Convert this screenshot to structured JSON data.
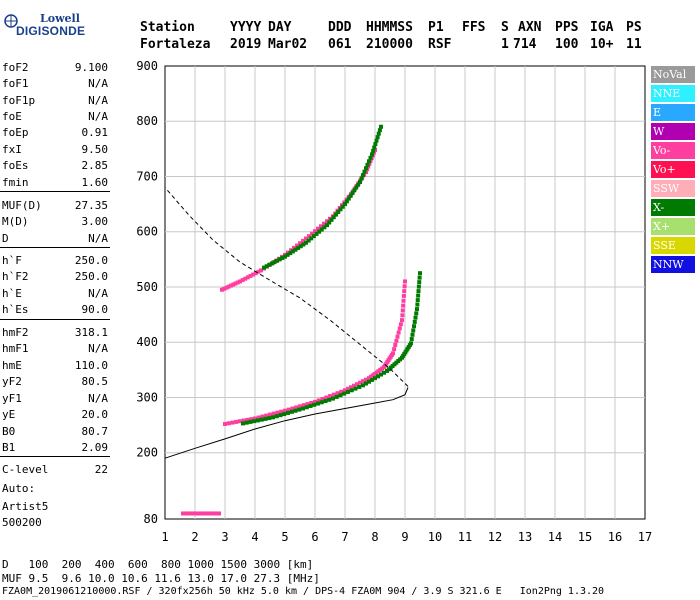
{
  "logo": {
    "line1": "Lowell",
    "line2": "DIGISONDE"
  },
  "header": {
    "labels": [
      "Station",
      "YYYY",
      "DAY",
      "DDD",
      "HHMMSS",
      "P1",
      "FFS",
      "S",
      "AXN",
      "PPS",
      "IGA",
      "PS"
    ],
    "values": [
      "Fortaleza",
      "2019",
      "Mar02",
      "061",
      "210000",
      "RSF",
      "1",
      "714",
      "100",
      "10+",
      "11"
    ]
  },
  "params": [
    {
      "k": "foF2",
      "v": "9.100"
    },
    {
      "k": "foF1",
      "v": "N/A"
    },
    {
      "k": "foF1p",
      "v": "N/A"
    },
    {
      "k": "foE",
      "v": "N/A"
    },
    {
      "k": "foEp",
      "v": "0.91"
    },
    {
      "k": "fxI",
      "v": "9.50"
    },
    {
      "k": "foEs",
      "v": "2.85"
    },
    {
      "k": "fmin",
      "v": "1.60"
    },
    {
      "k": "MUF(D)",
      "v": "27.35"
    },
    {
      "k": "M(D)",
      "v": "3.00"
    },
    {
      "k": "D",
      "v": "N/A"
    },
    {
      "k": "h`F",
      "v": "250.0"
    },
    {
      "k": "h`F2",
      "v": "250.0"
    },
    {
      "k": "h`E",
      "v": "N/A"
    },
    {
      "k": "h`Es",
      "v": "90.0"
    },
    {
      "k": "hmF2",
      "v": "318.1"
    },
    {
      "k": "hmF1",
      "v": "N/A"
    },
    {
      "k": "hmE",
      "v": "110.0"
    },
    {
      "k": "yF2",
      "v": "80.5"
    },
    {
      "k": "yF1",
      "v": "N/A"
    },
    {
      "k": "yE",
      "v": "20.0"
    },
    {
      "k": "B0",
      "v": "80.7"
    },
    {
      "k": "B1",
      "v": "2.09"
    },
    {
      "k": "C-level",
      "v": "22"
    }
  ],
  "autoscale": {
    "line1": "Auto:",
    "line2": "Artist5",
    "line3": "500200"
  },
  "legend": [
    {
      "label": "NoVal",
      "color": "#9a9a9a"
    },
    {
      "label": "NNE",
      "color": "#2ef0ff"
    },
    {
      "label": "E",
      "color": "#29a8ff"
    },
    {
      "label": "W",
      "color": "#b000b0"
    },
    {
      "label": "Vo-",
      "color": "#ff3fa0"
    },
    {
      "label": "Vo+",
      "color": "#ff1050"
    },
    {
      "label": "SSW",
      "color": "#ffaeb8"
    },
    {
      "label": "X-",
      "color": "#007a00"
    },
    {
      "label": "X+",
      "color": "#a8e070"
    },
    {
      "label": "SSE",
      "color": "#d8d800"
    },
    {
      "label": "NNW",
      "color": "#1010e0"
    }
  ],
  "footer": {
    "d_label": "D",
    "d_values": "100  200  400  600  800 1000 1500 3000 [km]",
    "muf_label": "MUF",
    "muf_values": "9.5  9.6 10.0 10.6 11.6 13.0 17.0 27.3 [MHz]",
    "fileinfo": "FZA0M_2019061210000.RSF / 320fx256h 50 kHz 5.0 km / DPS-4 FZA0M 904 / 3.9 S 321.6 E   Ion2Png 1.3.20"
  },
  "chart_data": {
    "type": "scatter",
    "xlabel": "",
    "ylabel": "",
    "xlim": [
      1,
      17
    ],
    "ylim": [
      80,
      900
    ],
    "xticks": [
      1,
      2,
      3,
      4,
      5,
      6,
      7,
      8,
      9,
      10,
      11,
      12,
      13,
      14,
      15,
      16,
      17
    ],
    "yticks": [
      80,
      200,
      300,
      400,
      500,
      600,
      700,
      800,
      900
    ],
    "grid": true,
    "series": [
      {
        "name": "Vo-",
        "color": "#ff3fa0",
        "kind": "trace",
        "x": [
          3.0,
          4.0,
          5.0,
          6.0,
          7.0,
          7.8,
          8.3,
          8.6,
          8.9,
          9.0
        ],
        "y": [
          252,
          262,
          276,
          292,
          313,
          335,
          355,
          380,
          440,
          510
        ]
      },
      {
        "name": "X-",
        "color": "#007a00",
        "kind": "trace",
        "x": [
          3.6,
          4.6,
          5.6,
          6.6,
          7.6,
          8.4,
          8.9,
          9.2,
          9.4,
          9.5
        ],
        "y": [
          253,
          264,
          280,
          298,
          322,
          348,
          372,
          398,
          460,
          525
        ]
      },
      {
        "name": "Vo-",
        "color": "#ff3fa0",
        "kind": "trace",
        "x": [
          2.9,
          3.5,
          4.2,
          5.0,
          5.8,
          6.6,
          7.2,
          7.7,
          8.0
        ],
        "y": [
          495,
          510,
          530,
          558,
          592,
          628,
          668,
          708,
          748
        ]
      },
      {
        "name": "X-",
        "color": "#007a00",
        "kind": "trace",
        "x": [
          4.3,
          5.0,
          5.7,
          6.4,
          7.0,
          7.5,
          7.9,
          8.2
        ],
        "y": [
          535,
          555,
          580,
          612,
          650,
          690,
          740,
          790
        ]
      },
      {
        "name": "Es",
        "color": "#ff3fa0",
        "kind": "trace",
        "x": [
          1.6,
          2.0,
          2.4,
          2.8
        ],
        "y": [
          90,
          90,
          90,
          90
        ]
      },
      {
        "name": "profile",
        "color": "#000000",
        "kind": "line",
        "x": [
          1.0,
          2.0,
          3.0,
          4.0,
          5.0,
          6.0,
          7.0,
          8.0,
          8.6,
          9.0,
          9.1
        ],
        "y": [
          190,
          208,
          225,
          243,
          258,
          270,
          280,
          290,
          296,
          305,
          318
        ]
      },
      {
        "name": "topside",
        "color": "#000000",
        "kind": "dash",
        "x": [
          9.1,
          8.5,
          7.5,
          6.5,
          5.5,
          4.5,
          3.5,
          2.6,
          1.8,
          1.0
        ],
        "y": [
          320,
          352,
          396,
          440,
          480,
          512,
          545,
          585,
          630,
          680
        ]
      }
    ]
  }
}
